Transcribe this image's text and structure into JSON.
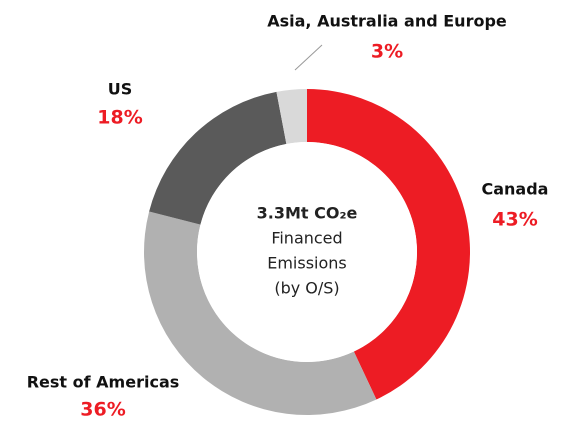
{
  "chart_data": {
    "type": "donut",
    "center_text": [
      "3.3Mt CO₂e",
      "Financed",
      "Emissions",
      "(by O/S)"
    ],
    "categories": [
      "Canada",
      "Rest of Americas",
      "US",
      "Asia, Australia and Europe"
    ],
    "values": [
      43,
      36,
      18,
      3
    ],
    "value_labels": [
      "43%",
      "36%",
      "18%",
      "3%"
    ],
    "colors": [
      "#ed1c24",
      "#b1b1b1",
      "#5a5a5a",
      "#d9d9d9"
    ]
  }
}
